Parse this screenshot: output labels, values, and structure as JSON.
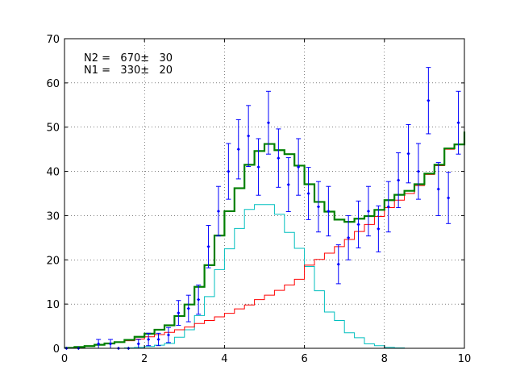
{
  "chart_data": {
    "type": "line",
    "title": "",
    "xlabel": "",
    "ylabel": "",
    "xlim": [
      0,
      10
    ],
    "ylim": [
      0,
      70
    ],
    "grid": true,
    "xticks": [
      "0",
      "2",
      "4",
      "6",
      "8",
      "10"
    ],
    "yticks": [
      "0",
      "10",
      "20",
      "30",
      "40",
      "50",
      "60",
      "70"
    ],
    "annotations": [
      "N2 =   670±   30",
      "N1 =   330±   20"
    ],
    "data_points": {
      "x": [
        0.05,
        0.35,
        0.85,
        1.15,
        1.35,
        1.6,
        1.85,
        2.1,
        2.35,
        2.6,
        2.85,
        3.1,
        3.35,
        3.6,
        3.85,
        4.1,
        4.35,
        4.6,
        4.85,
        5.1,
        5.35,
        5.6,
        5.85,
        6.1,
        6.35,
        6.6,
        6.85,
        7.1,
        7.35,
        7.6,
        7.85,
        8.1,
        8.35,
        8.6,
        8.85,
        9.1,
        9.35,
        9.6,
        9.85
      ],
      "y": [
        0,
        0,
        1,
        1,
        0,
        0,
        1,
        2,
        2,
        3,
        8,
        9,
        11,
        23,
        31,
        40,
        45,
        48,
        41,
        51,
        43,
        37,
        41,
        35,
        32,
        31,
        19,
        25,
        28,
        31,
        27,
        32,
        38,
        44,
        40,
        56,
        36,
        34,
        51
      ],
      "yerr": [
        0,
        0,
        1,
        1,
        0,
        0,
        1,
        1.4,
        1.4,
        1.7,
        2.8,
        3,
        3.3,
        4.8,
        5.6,
        6.3,
        6.7,
        6.9,
        6.4,
        7.1,
        6.6,
        6.1,
        6.4,
        5.9,
        5.7,
        5.6,
        4.4,
        5,
        5.3,
        5.6,
        5.2,
        5.7,
        6.2,
        6.6,
        6.3,
        7.5,
        6,
        5.8,
        7.1
      ]
    },
    "series": [
      {
        "role": "total",
        "color": "#008000",
        "x": [
          0,
          0.25,
          0.5,
          0.75,
          1,
          1.25,
          1.5,
          1.75,
          2,
          2.25,
          2.5,
          2.75,
          3,
          3.25,
          3.5,
          3.75,
          4,
          4.25,
          4.5,
          4.75,
          5,
          5.25,
          5.5,
          5.75,
          6,
          6.25,
          6.5,
          6.75,
          7,
          7.25,
          7.5,
          7.75,
          8,
          8.25,
          8.5,
          8.75,
          9,
          9.25,
          9.5,
          9.75,
          10
        ],
        "y": [
          0.1,
          0.3,
          0.5,
          0.8,
          1.1,
          1.4,
          1.9,
          2.6,
          3.3,
          4.2,
          5.2,
          7.3,
          9.9,
          13.9,
          18.8,
          25.5,
          31,
          36.2,
          41.5,
          44.6,
          46.2,
          44.8,
          43.9,
          41.3,
          37.1,
          33.1,
          30.9,
          29.1,
          28.6,
          29.3,
          29.9,
          31.3,
          33.5,
          34.7,
          35.6,
          37.1,
          39.5,
          41.5,
          45.2,
          46.1,
          49
        ]
      },
      {
        "role": "component-1",
        "color": "#ff0000",
        "x": [
          0,
          0.25,
          0.5,
          0.75,
          1,
          1.25,
          1.5,
          1.75,
          2,
          2.25,
          2.5,
          2.75,
          3,
          3.25,
          3.5,
          3.75,
          4,
          4.25,
          4.5,
          4.75,
          5,
          5.25,
          5.5,
          5.75,
          6,
          6.25,
          6.5,
          6.75,
          7,
          7.25,
          7.5,
          7.75,
          8,
          8.25,
          8.5,
          8.75,
          9,
          9.25,
          9.5,
          9.75,
          10
        ],
        "y": [
          0.1,
          0.3,
          0.5,
          0.8,
          1.1,
          1.4,
          1.7,
          2.1,
          2.6,
          3.1,
          3.6,
          4.2,
          4.8,
          5.6,
          6.3,
          7.1,
          7.9,
          8.9,
          9.8,
          11,
          12,
          13.1,
          14.3,
          15.6,
          18.8,
          20.1,
          21.5,
          23,
          24.6,
          26.4,
          28,
          29.8,
          31.8,
          33.5,
          35,
          36.8,
          39.3,
          41.3,
          45,
          46.1,
          49
        ]
      },
      {
        "role": "component-2",
        "color": "#00bfbf",
        "x": [
          0,
          0.25,
          0.5,
          0.75,
          1,
          1.25,
          1.5,
          1.75,
          2,
          2.25,
          2.5,
          2.75,
          3,
          3.25,
          3.5,
          3.75,
          4,
          4.25,
          4.5,
          4.75,
          5,
          5.25,
          5.5,
          5.75,
          6,
          6.25,
          6.5,
          6.75,
          7,
          7.25,
          7.5,
          7.75,
          8,
          8.25,
          8.5,
          8.75,
          9,
          9.25,
          9.5,
          9.75,
          10
        ],
        "y": [
          0,
          0,
          0,
          0,
          0,
          0,
          0.1,
          0.2,
          0.4,
          0.7,
          1.1,
          2.5,
          4.2,
          7.4,
          11.7,
          17.8,
          22.5,
          27.1,
          31.4,
          32.5,
          32.5,
          30.3,
          26.2,
          22.6,
          18.5,
          13,
          8.2,
          6.3,
          3.5,
          2.4,
          1,
          0.6,
          0.2,
          0.1,
          0,
          0,
          0,
          0,
          0,
          0,
          0
        ]
      }
    ]
  }
}
